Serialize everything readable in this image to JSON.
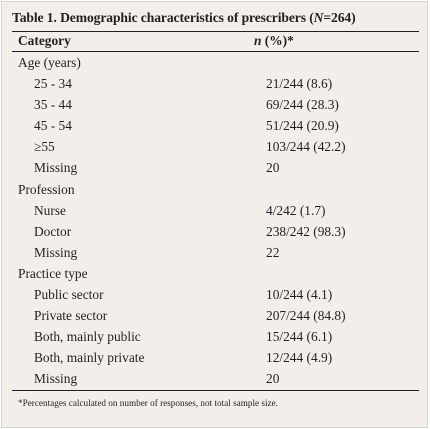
{
  "table": {
    "title_prefix": "Table 1. Demographic characteristics of prescribers (",
    "title_n": "N",
    "title_suffix": "=264)",
    "header_category": "Category",
    "header_n": "n",
    "header_suffix": " (%)*",
    "rows": [
      {
        "type": "section",
        "category": "Age (years)",
        "value": ""
      },
      {
        "type": "item",
        "category": "25 - 34",
        "value": "21/244 (8.6)"
      },
      {
        "type": "item",
        "category": "35 - 44",
        "value": "69/244 (28.3)"
      },
      {
        "type": "item",
        "category": "45 - 54",
        "value": "51/244 (20.9)"
      },
      {
        "type": "item",
        "category": "≥55",
        "value": "103/244 (42.2)"
      },
      {
        "type": "item",
        "category": "Missing",
        "value": "20"
      },
      {
        "type": "section",
        "category": "Profession",
        "value": ""
      },
      {
        "type": "item",
        "category": "Nurse",
        "value": "4/242 (1.7)"
      },
      {
        "type": "item",
        "category": "Doctor",
        "value": "238/242 (98.3)"
      },
      {
        "type": "item",
        "category": "Missing",
        "value": "22"
      },
      {
        "type": "section",
        "category": "Practice type",
        "value": ""
      },
      {
        "type": "item",
        "category": "Public sector",
        "value": "10/244 (4.1)"
      },
      {
        "type": "item",
        "category": "Private sector",
        "value": "207/244 (84.8)"
      },
      {
        "type": "item",
        "category": "Both, mainly public",
        "value": "15/244 (6.1)"
      },
      {
        "type": "item",
        "category": "Both, mainly private",
        "value": "12/244 (4.9)"
      },
      {
        "type": "item",
        "category": "Missing",
        "value": "20"
      }
    ],
    "footnote": "*Percentages calculated on number of responses, not total sample size."
  }
}
